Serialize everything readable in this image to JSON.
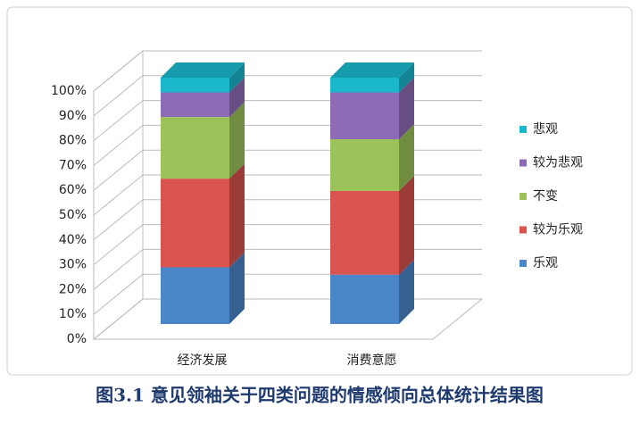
{
  "chart_data": {
    "type": "bar3d_stacked",
    "title": "图3.1 意见领袖关于四类问题的情感倾向总体统计结果图",
    "categories": [
      "经济发展",
      "消费意愿"
    ],
    "series": [
      {
        "name": "乐观",
        "color": "#4a86c8",
        "values": [
          23,
          20
        ]
      },
      {
        "name": "较为乐观",
        "color": "#d9534f",
        "values": [
          36,
          34
        ]
      },
      {
        "name": "不变",
        "color": "#9bc35a",
        "values": [
          25,
          21
        ]
      },
      {
        "name": "较为悲观",
        "color": "#8e6bb5",
        "values": [
          10,
          19
        ]
      },
      {
        "name": "悲观",
        "color": "#1bb8cc",
        "values": [
          6,
          6
        ]
      }
    ],
    "ylim": [
      0,
      100
    ],
    "yticks": [
      {
        "value": 0,
        "label": "0%"
      },
      {
        "value": 10,
        "label": "10%"
      },
      {
        "value": 20,
        "label": "20%"
      },
      {
        "value": 30,
        "label": "30%"
      },
      {
        "value": 40,
        "label": "40%"
      },
      {
        "value": 50,
        "label": "50%"
      },
      {
        "value": 60,
        "label": "60%"
      },
      {
        "value": 70,
        "label": "70%"
      },
      {
        "value": 80,
        "label": "80%"
      },
      {
        "value": 90,
        "label": "90%"
      },
      {
        "value": 100,
        "label": "100%"
      }
    ],
    "grid": true
  }
}
